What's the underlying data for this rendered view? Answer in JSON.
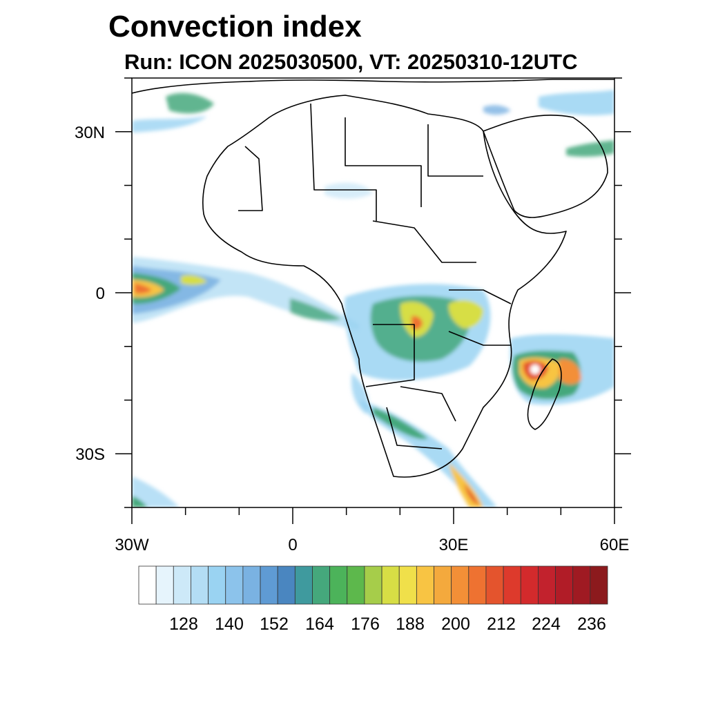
{
  "title": "Convection index",
  "subtitle": "Run: ICON 2025030500,  VT: 20250310-12UTC",
  "map": {
    "lon_range": [
      -30,
      60
    ],
    "lat_range": [
      -40,
      40
    ],
    "x_tick_labels": [
      "30W",
      "0",
      "30E",
      "60E"
    ],
    "y_tick_labels": [
      "30N",
      "0",
      "30S"
    ],
    "x_ticks_deg": [
      -30,
      0,
      30,
      60
    ],
    "x_minor_ticks_deg": [
      -20,
      -10,
      10,
      20,
      40,
      50
    ],
    "y_ticks_deg": [
      30,
      0,
      -30
    ],
    "y_minor_ticks_deg": [
      40,
      20,
      10,
      -10,
      -20,
      -40
    ]
  },
  "colorbar": {
    "labels": [
      "128",
      "140",
      "152",
      "164",
      "176",
      "188",
      "200",
      "212",
      "224",
      "236"
    ],
    "colors": [
      "#ffffff",
      "#e6f4fc",
      "#cde9f8",
      "#b3ddf4",
      "#9ad3f2",
      "#8cc3eb",
      "#7ab2e2",
      "#5f9bd4",
      "#4a86c0",
      "#3f9a9e",
      "#45a87c",
      "#4cb35a",
      "#5db84c",
      "#a6cd4a",
      "#d7de45",
      "#f0e04a",
      "#f8c443",
      "#f4a93d",
      "#f38f37",
      "#ee7231",
      "#e4542d",
      "#dd3a2c",
      "#d32a2c",
      "#c2222d",
      "#b11c27",
      "#9f1a22",
      "#8c1a1d"
    ]
  },
  "fields": {
    "colors": {
      "low": "#9ad3f2",
      "mid": "#45a87c",
      "high": "#f0e04a",
      "peak": "#e4542d"
    }
  }
}
